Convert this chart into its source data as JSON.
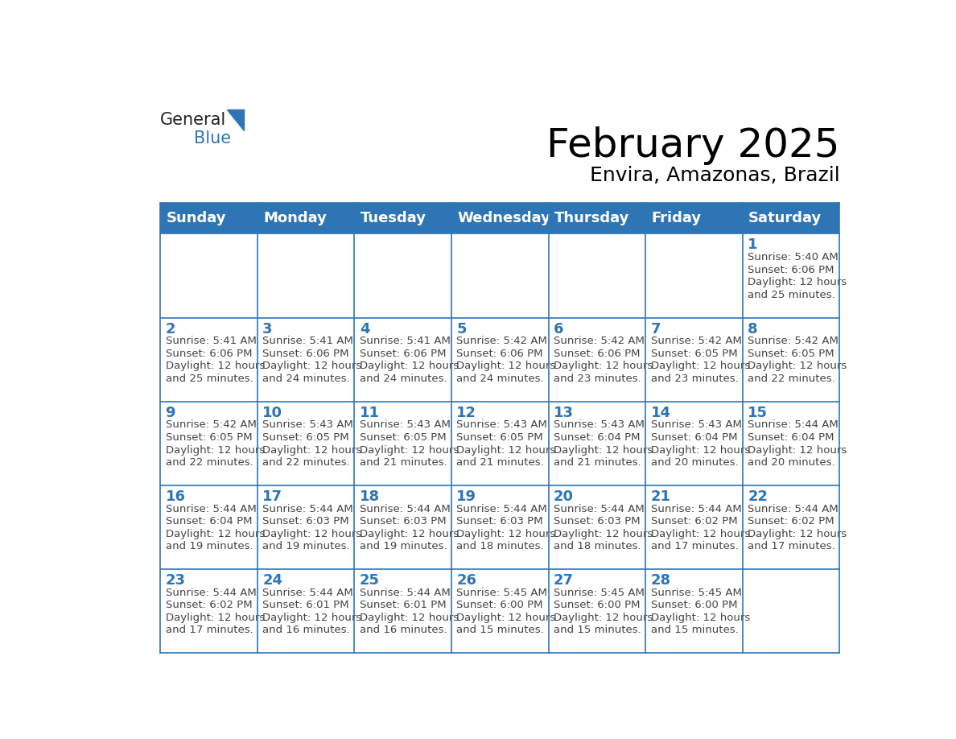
{
  "title": "February 2025",
  "subtitle": "Envira, Amazonas, Brazil",
  "header_bg_color": "#2E75B6",
  "header_text_color": "#FFFFFF",
  "cell_bg_color": "#FFFFFF",
  "grid_line_color": "#2E75B6",
  "day_number_color": "#2E75B6",
  "text_color": "#444444",
  "days_of_week": [
    "Sunday",
    "Monday",
    "Tuesday",
    "Wednesday",
    "Thursday",
    "Friday",
    "Saturday"
  ],
  "title_fontsize": 36,
  "subtitle_fontsize": 18,
  "header_fontsize": 13,
  "day_num_fontsize": 13,
  "info_fontsize": 9.5,
  "logo_general_color": "#222222",
  "logo_blue_color": "#2E75B6",
  "calendar_data": [
    [
      null,
      null,
      null,
      null,
      null,
      null,
      {
        "day": 1,
        "sunrise": "5:40 AM",
        "sunset": "6:06 PM",
        "daylight_hours": 12,
        "daylight_minutes": 25
      }
    ],
    [
      {
        "day": 2,
        "sunrise": "5:41 AM",
        "sunset": "6:06 PM",
        "daylight_hours": 12,
        "daylight_minutes": 25
      },
      {
        "day": 3,
        "sunrise": "5:41 AM",
        "sunset": "6:06 PM",
        "daylight_hours": 12,
        "daylight_minutes": 24
      },
      {
        "day": 4,
        "sunrise": "5:41 AM",
        "sunset": "6:06 PM",
        "daylight_hours": 12,
        "daylight_minutes": 24
      },
      {
        "day": 5,
        "sunrise": "5:42 AM",
        "sunset": "6:06 PM",
        "daylight_hours": 12,
        "daylight_minutes": 24
      },
      {
        "day": 6,
        "sunrise": "5:42 AM",
        "sunset": "6:06 PM",
        "daylight_hours": 12,
        "daylight_minutes": 23
      },
      {
        "day": 7,
        "sunrise": "5:42 AM",
        "sunset": "6:05 PM",
        "daylight_hours": 12,
        "daylight_minutes": 23
      },
      {
        "day": 8,
        "sunrise": "5:42 AM",
        "sunset": "6:05 PM",
        "daylight_hours": 12,
        "daylight_minutes": 22
      }
    ],
    [
      {
        "day": 9,
        "sunrise": "5:42 AM",
        "sunset": "6:05 PM",
        "daylight_hours": 12,
        "daylight_minutes": 22
      },
      {
        "day": 10,
        "sunrise": "5:43 AM",
        "sunset": "6:05 PM",
        "daylight_hours": 12,
        "daylight_minutes": 22
      },
      {
        "day": 11,
        "sunrise": "5:43 AM",
        "sunset": "6:05 PM",
        "daylight_hours": 12,
        "daylight_minutes": 21
      },
      {
        "day": 12,
        "sunrise": "5:43 AM",
        "sunset": "6:05 PM",
        "daylight_hours": 12,
        "daylight_minutes": 21
      },
      {
        "day": 13,
        "sunrise": "5:43 AM",
        "sunset": "6:04 PM",
        "daylight_hours": 12,
        "daylight_minutes": 21
      },
      {
        "day": 14,
        "sunrise": "5:43 AM",
        "sunset": "6:04 PM",
        "daylight_hours": 12,
        "daylight_minutes": 20
      },
      {
        "day": 15,
        "sunrise": "5:44 AM",
        "sunset": "6:04 PM",
        "daylight_hours": 12,
        "daylight_minutes": 20
      }
    ],
    [
      {
        "day": 16,
        "sunrise": "5:44 AM",
        "sunset": "6:04 PM",
        "daylight_hours": 12,
        "daylight_minutes": 19
      },
      {
        "day": 17,
        "sunrise": "5:44 AM",
        "sunset": "6:03 PM",
        "daylight_hours": 12,
        "daylight_minutes": 19
      },
      {
        "day": 18,
        "sunrise": "5:44 AM",
        "sunset": "6:03 PM",
        "daylight_hours": 12,
        "daylight_minutes": 19
      },
      {
        "day": 19,
        "sunrise": "5:44 AM",
        "sunset": "6:03 PM",
        "daylight_hours": 12,
        "daylight_minutes": 18
      },
      {
        "day": 20,
        "sunrise": "5:44 AM",
        "sunset": "6:03 PM",
        "daylight_hours": 12,
        "daylight_minutes": 18
      },
      {
        "day": 21,
        "sunrise": "5:44 AM",
        "sunset": "6:02 PM",
        "daylight_hours": 12,
        "daylight_minutes": 17
      },
      {
        "day": 22,
        "sunrise": "5:44 AM",
        "sunset": "6:02 PM",
        "daylight_hours": 12,
        "daylight_minutes": 17
      }
    ],
    [
      {
        "day": 23,
        "sunrise": "5:44 AM",
        "sunset": "6:02 PM",
        "daylight_hours": 12,
        "daylight_minutes": 17
      },
      {
        "day": 24,
        "sunrise": "5:44 AM",
        "sunset": "6:01 PM",
        "daylight_hours": 12,
        "daylight_minutes": 16
      },
      {
        "day": 25,
        "sunrise": "5:44 AM",
        "sunset": "6:01 PM",
        "daylight_hours": 12,
        "daylight_minutes": 16
      },
      {
        "day": 26,
        "sunrise": "5:45 AM",
        "sunset": "6:00 PM",
        "daylight_hours": 12,
        "daylight_minutes": 15
      },
      {
        "day": 27,
        "sunrise": "5:45 AM",
        "sunset": "6:00 PM",
        "daylight_hours": 12,
        "daylight_minutes": 15
      },
      {
        "day": 28,
        "sunrise": "5:45 AM",
        "sunset": "6:00 PM",
        "daylight_hours": 12,
        "daylight_minutes": 15
      },
      null
    ]
  ]
}
